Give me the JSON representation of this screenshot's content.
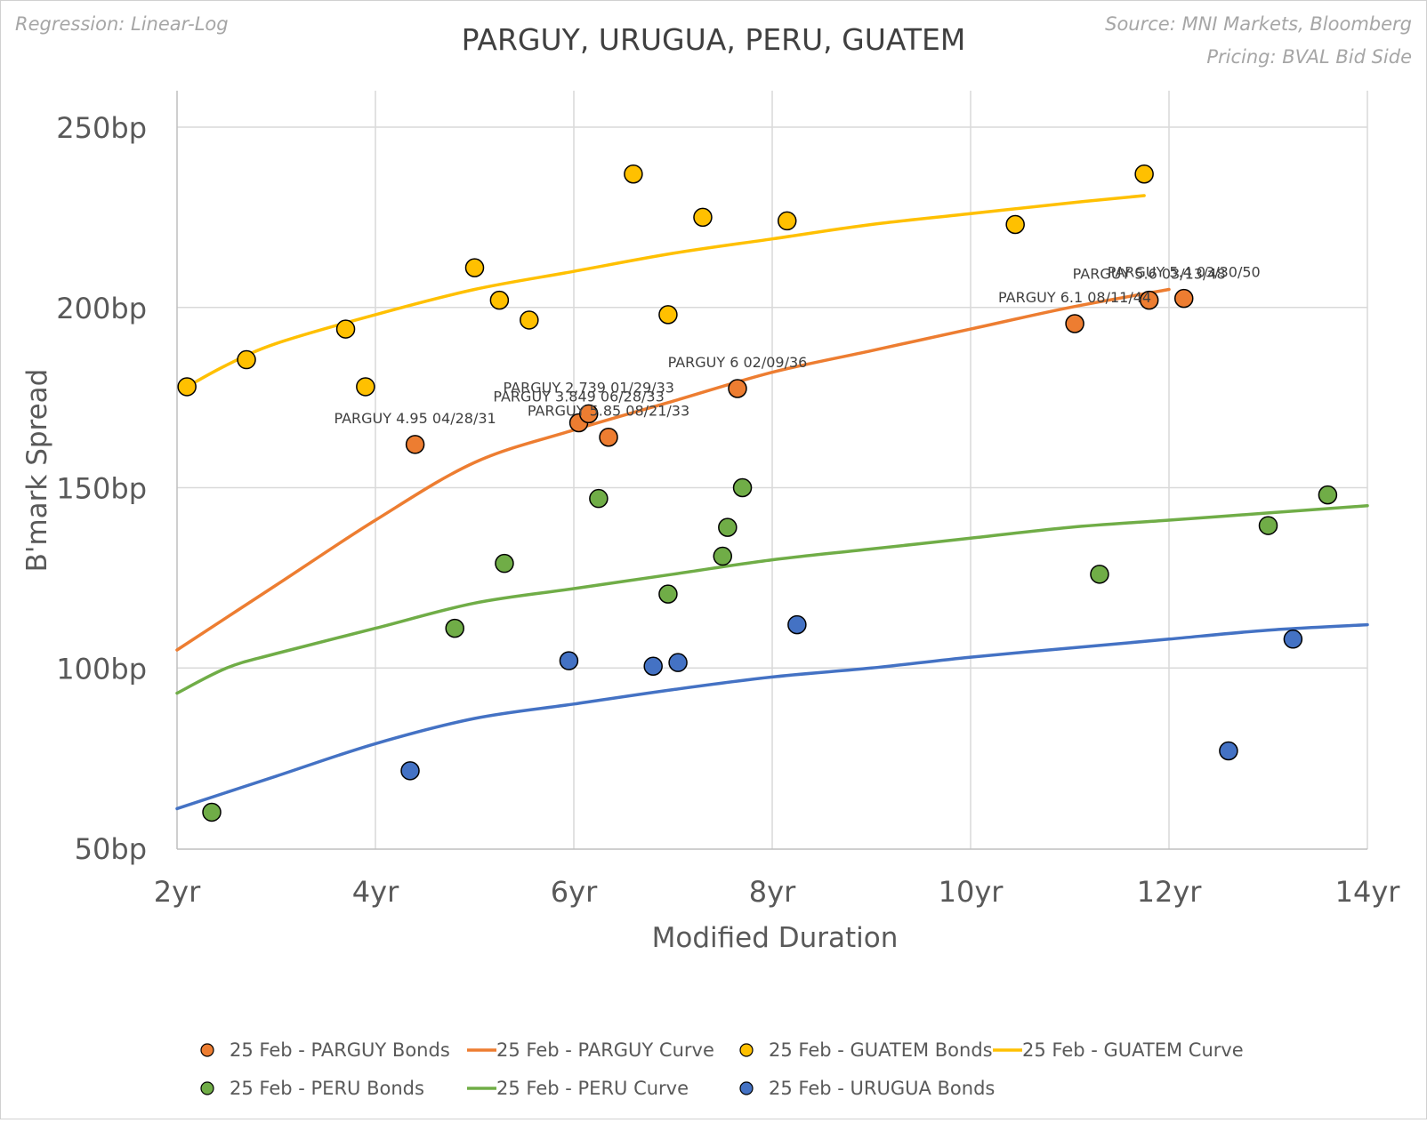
{
  "header": {
    "regression_note": "Regression: Linear-Log",
    "source": "Source: MNI Markets, Bloomberg",
    "pricing": "Pricing: BVAL Bid Side"
  },
  "chart_data": {
    "type": "scatter",
    "title": "PARGUY, URUGUA, PERU, GUATEM",
    "xlabel": "Modified Duration",
    "ylabel": "B'mark Spread",
    "xlim": [
      2,
      14
    ],
    "ylim": [
      50,
      250
    ],
    "x_ticks": [
      2,
      4,
      6,
      8,
      10,
      12,
      14
    ],
    "x_tick_labels": [
      "2yr",
      "4yr",
      "6yr",
      "8yr",
      "10yr",
      "12yr",
      "14yr"
    ],
    "y_ticks": [
      50,
      100,
      150,
      200,
      250
    ],
    "y_tick_labels": [
      "50bp",
      "100bp",
      "150bp",
      "200bp",
      "250bp"
    ],
    "grid": true,
    "legend_position": "bottom",
    "colors": {
      "parguy": "#ED7D31",
      "guatem": "#FFC000",
      "peru": "#70AD47",
      "urugua": "#4472C4"
    },
    "series": [
      {
        "name": "25 Feb - PARGUY Bonds",
        "kind": "points",
        "color": "#ED7D31",
        "points": [
          {
            "x": 4.4,
            "y": 162,
            "label": "PARGUY 4.95 04/28/31"
          },
          {
            "x": 6.05,
            "y": 168,
            "label": "PARGUY 3.849 06/28/33"
          },
          {
            "x": 6.15,
            "y": 170.5,
            "label": "PARGUY 2.739 01/29/33"
          },
          {
            "x": 6.35,
            "y": 164,
            "label": "PARGUY 5.85 08/21/33"
          },
          {
            "x": 7.65,
            "y": 177.5,
            "label": "PARGUY 6 02/09/36"
          },
          {
            "x": 11.05,
            "y": 195.5,
            "label": "PARGUY 6.1 08/11/44"
          },
          {
            "x": 11.8,
            "y": 202,
            "label": "PARGUY 5.6 03/13/48"
          },
          {
            "x": 12.15,
            "y": 202.5,
            "label": "PARGUY 5.4 03/30/50"
          }
        ]
      },
      {
        "name": "25 Feb - PARGUY Curve",
        "kind": "line",
        "color": "#ED7D31",
        "x": [
          2.0,
          3.0,
          4.0,
          5.0,
          6.0,
          7.0,
          8.0,
          9.0,
          10.0,
          11.0,
          12.0
        ],
        "y": [
          105,
          123,
          141,
          157,
          166,
          174,
          182,
          188,
          194,
          200,
          205
        ]
      },
      {
        "name": "25 Feb - GUATEM Bonds",
        "kind": "points",
        "color": "#FFC000",
        "points": [
          {
            "x": 2.1,
            "y": 178
          },
          {
            "x": 2.7,
            "y": 185.5
          },
          {
            "x": 3.7,
            "y": 194
          },
          {
            "x": 3.9,
            "y": 178
          },
          {
            "x": 5.0,
            "y": 211
          },
          {
            "x": 5.25,
            "y": 202
          },
          {
            "x": 5.55,
            "y": 196.5
          },
          {
            "x": 6.6,
            "y": 237
          },
          {
            "x": 6.95,
            "y": 198
          },
          {
            "x": 7.3,
            "y": 225
          },
          {
            "x": 8.15,
            "y": 224
          },
          {
            "x": 10.45,
            "y": 223
          },
          {
            "x": 11.75,
            "y": 237
          }
        ]
      },
      {
        "name": "25 Feb - GUATEM Curve",
        "kind": "line",
        "color": "#FFC000",
        "x": [
          2.1,
          2.5,
          3.0,
          4.0,
          5.0,
          6.0,
          7.0,
          8.0,
          9.0,
          10.0,
          11.0,
          11.75
        ],
        "y": [
          178,
          184,
          190,
          198,
          205,
          210,
          215,
          219,
          223,
          226,
          229,
          231
        ]
      },
      {
        "name": "25 Feb - PERU Bonds",
        "kind": "points",
        "color": "#70AD47",
        "points": [
          {
            "x": 2.35,
            "y": 60
          },
          {
            "x": 4.8,
            "y": 111
          },
          {
            "x": 5.3,
            "y": 129
          },
          {
            "x": 6.25,
            "y": 147
          },
          {
            "x": 6.95,
            "y": 120.5
          },
          {
            "x": 7.5,
            "y": 131
          },
          {
            "x": 7.55,
            "y": 139
          },
          {
            "x": 7.7,
            "y": 150
          },
          {
            "x": 11.3,
            "y": 126
          },
          {
            "x": 13.0,
            "y": 139.5
          },
          {
            "x": 13.6,
            "y": 148
          }
        ]
      },
      {
        "name": "25 Feb - PERU Curve",
        "kind": "line",
        "color": "#70AD47",
        "x": [
          2.0,
          2.5,
          3.0,
          4.0,
          5.0,
          6.0,
          7.0,
          8.0,
          9.0,
          10.0,
          11.0,
          12.0,
          13.0,
          14.0
        ],
        "y": [
          93,
          100,
          104,
          111,
          118,
          122,
          126,
          130,
          133,
          136,
          139,
          141,
          143,
          145
        ]
      },
      {
        "name": "25 Feb - URUGUA Bonds",
        "kind": "points",
        "color": "#4472C4",
        "points": [
          {
            "x": 4.35,
            "y": 71.5
          },
          {
            "x": 5.95,
            "y": 102
          },
          {
            "x": 6.8,
            "y": 100.5
          },
          {
            "x": 7.05,
            "y": 101.5
          },
          {
            "x": 8.25,
            "y": 112
          },
          {
            "x": 12.6,
            "y": 77
          },
          {
            "x": 13.25,
            "y": 108
          }
        ]
      },
      {
        "name": "",
        "kind": "line",
        "color": "#4472C4",
        "x": [
          2.0,
          3.0,
          4.0,
          5.0,
          6.0,
          7.0,
          8.0,
          9.0,
          10.0,
          11.0,
          12.0,
          13.0,
          14.0
        ],
        "y": [
          61,
          70,
          79,
          86,
          90,
          94,
          97.5,
          100,
          103,
          105.5,
          108,
          110.5,
          112
        ]
      }
    ],
    "legend": [
      {
        "label": "25 Feb - PARGUY Bonds",
        "kind": "marker",
        "color": "#ED7D31"
      },
      {
        "label": "25 Feb - PARGUY Curve",
        "kind": "line",
        "color": "#ED7D31"
      },
      {
        "label": "25 Feb - GUATEM Bonds",
        "kind": "marker",
        "color": "#FFC000"
      },
      {
        "label": "25 Feb - GUATEM Curve",
        "kind": "line",
        "color": "#FFC000"
      },
      {
        "label": "25 Feb - PERU Bonds",
        "kind": "marker",
        "color": "#70AD47"
      },
      {
        "label": "25 Feb - PERU Curve",
        "kind": "line",
        "color": "#70AD47"
      },
      {
        "label": "25 Feb - URUGUA Bonds",
        "kind": "marker",
        "color": "#4472C4"
      }
    ]
  }
}
